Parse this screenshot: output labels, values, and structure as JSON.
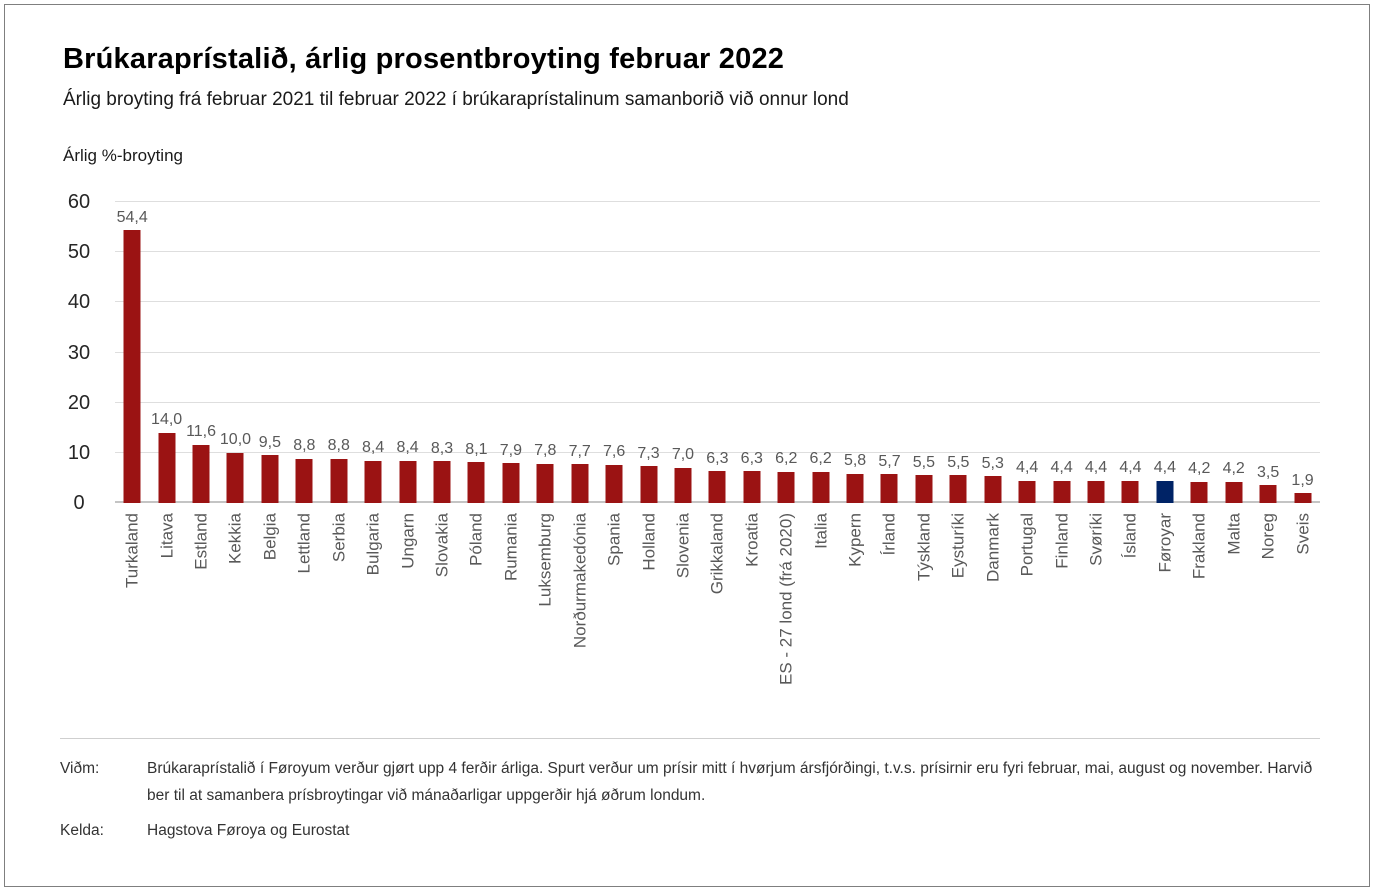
{
  "header": {
    "title": "Brúkaraprístalið, árlig prosentbroyting februar 2022",
    "subtitle": "Árlig broyting frá februar 2021 til februar 2022 í brúkaraprístalinum samanborið við onnur lond"
  },
  "chart_data": {
    "type": "bar",
    "title": "Brúkaraprístalið, árlig prosentbroyting februar 2022",
    "subtitle": "Árlig broyting frá februar 2021 til februar 2022 í brúkaraprístalinum samanborið við onnur lond",
    "ylabel": "Árlig %-broyting",
    "xlabel": "",
    "ylim": [
      0,
      60
    ],
    "yticks": [
      0,
      10,
      20,
      30,
      40,
      50,
      60
    ],
    "grid": "horizontal",
    "legend": "none",
    "decimal_separator": ",",
    "bar_color": "#9b1313",
    "highlight": {
      "category": "Føroyar",
      "index": 30,
      "color": "#002366"
    },
    "categories": [
      "Turkaland",
      "Litava",
      "Estland",
      "Kekkia",
      "Belgia",
      "Lettland",
      "Serbia",
      "Bulgaria",
      "Ungarn",
      "Slovakia",
      "Póland",
      "Rumania",
      "Luksemburg",
      "Norðurmakedónia",
      "Spania",
      "Holland",
      "Slovenia",
      "Grikkaland",
      "Kroatia",
      "ES - 27 lond (frá 2020)",
      "Italia",
      "Kypern",
      "Írland",
      "Týskland",
      "Eysturíki",
      "Danmark",
      "Portugal",
      "Finland",
      "Svøríki",
      "Ísland",
      "Føroyar",
      "Frakland",
      "Malta",
      "Noreg",
      "Sveis"
    ],
    "values": [
      54.4,
      14.0,
      11.6,
      10.0,
      9.5,
      8.8,
      8.8,
      8.4,
      8.4,
      8.3,
      8.1,
      7.9,
      7.8,
      7.7,
      7.6,
      7.3,
      7.0,
      6.3,
      6.3,
      6.2,
      6.2,
      5.8,
      5.7,
      5.5,
      5.5,
      5.3,
      4.4,
      4.4,
      4.4,
      4.4,
      4.4,
      4.2,
      4.2,
      3.5,
      1.9
    ]
  },
  "footer": {
    "note_label": "Viðm:",
    "note_text": "Brúkaraprístalið í Føroyum verður gjørt upp 4 ferðir árliga. Spurt verður um prísir mitt í hvørjum ársfjórðingi, t.v.s. prísirnir eru fyri februar, mai, august og november. Harvið ber til at samanbera prísbroytingar við mánaðarligar uppgerðir hjá øðrum londum.",
    "source_label": "Kelda:",
    "source_text": "Hagstova Føroya og Eurostat"
  }
}
